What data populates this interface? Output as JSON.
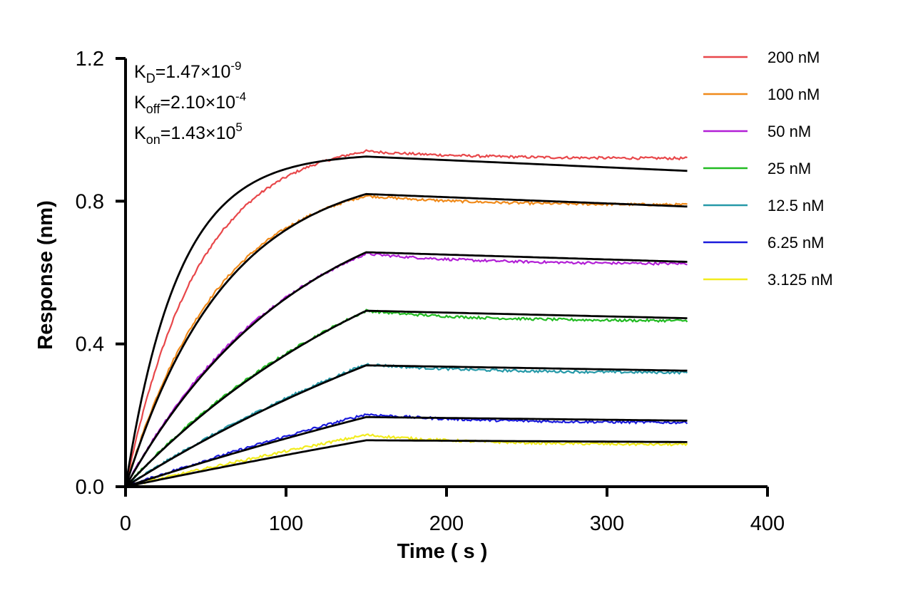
{
  "chart_data": {
    "type": "line",
    "title": "",
    "xlabel": "Time ( s )",
    "ylabel": "Response (nm)",
    "xlim": [
      0,
      400
    ],
    "ylim": [
      0,
      1.2
    ],
    "xticks": [
      0,
      100,
      200,
      300,
      400
    ],
    "yticks": [
      0.0,
      0.4,
      0.8,
      1.2
    ],
    "xtick_labels": [
      "0",
      "100",
      "200",
      "300",
      "400"
    ],
    "ytick_labels": [
      "0.0",
      "0.4",
      "0.8",
      "1.2"
    ],
    "legend_position": "top-right",
    "grid": false,
    "association_end": 150,
    "run_end": 350,
    "annotations": [
      {
        "symbol": "K",
        "sub": "D",
        "value": "=1.47×10",
        "exp": "-9"
      },
      {
        "symbol": "K",
        "sub": "off",
        "value": "=2.10×10",
        "exp": "-4"
      },
      {
        "symbol": "K",
        "sub": "on",
        "value": "=1.43×10",
        "exp": "5"
      }
    ],
    "fit_color": "#000000",
    "series": [
      {
        "name": "200 nM",
        "color": "#E8474A",
        "fit_plateau": 0.935,
        "fit_k": 0.0305,
        "peak": 0.925,
        "end": 0.885,
        "meas_peak": 0.94,
        "meas_end": 0.92
      },
      {
        "name": "100 nM",
        "color": "#F08A1A",
        "fit_plateau": 0.9,
        "fit_k": 0.016,
        "peak": 0.82,
        "end": 0.785,
        "meas_peak": 0.815,
        "meas_end": 0.79
      },
      {
        "name": "50 nM",
        "color": "#B21FD6",
        "fit_plateau": 0.88,
        "fit_k": 0.0092,
        "peak": 0.657,
        "end": 0.63,
        "meas_peak": 0.653,
        "meas_end": 0.625
      },
      {
        "name": "25 nM",
        "color": "#22BB22",
        "fit_plateau": 0.89,
        "fit_k": 0.0053,
        "peak": 0.493,
        "end": 0.472,
        "meas_peak": 0.493,
        "meas_end": 0.465
      },
      {
        "name": "12.5 nM",
        "color": "#2699A8",
        "fit_plateau": 0.9,
        "fit_k": 0.0032,
        "peak": 0.34,
        "end": 0.325,
        "meas_peak": 0.343,
        "meas_end": 0.32
      },
      {
        "name": "6.25 nM",
        "color": "#1A1ADB",
        "fit_plateau": 0.9,
        "fit_k": 0.0016,
        "peak": 0.195,
        "end": 0.185,
        "meas_peak": 0.203,
        "meas_end": 0.18
      },
      {
        "name": "3.125 nM",
        "color": "#F2EC1E",
        "fit_plateau": 0.9,
        "fit_k": 0.001,
        "peak": 0.13,
        "end": 0.125,
        "meas_peak": 0.145,
        "meas_end": 0.118
      }
    ]
  }
}
